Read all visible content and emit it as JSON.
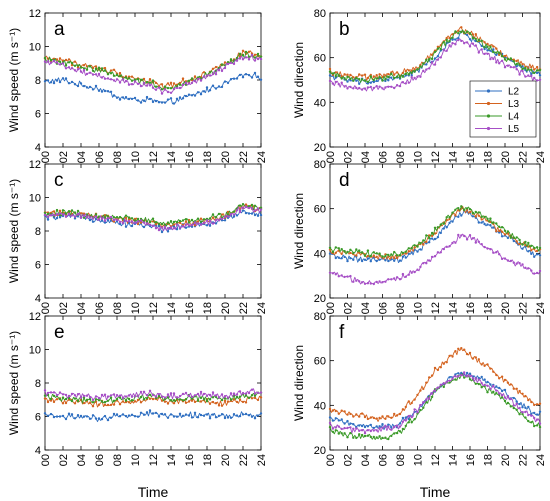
{
  "figure": {
    "x_label": "Time",
    "x_tick_labels": [
      "00",
      "02",
      "04",
      "06",
      "08",
      "10",
      "12",
      "14",
      "16",
      "18",
      "20",
      "22",
      "24"
    ]
  },
  "legend": {
    "entries": [
      {
        "name": "L2",
        "color": "#2f6fc1"
      },
      {
        "name": "L3",
        "color": "#d4631f"
      },
      {
        "name": "L4",
        "color": "#3a9a28"
      },
      {
        "name": "L5",
        "color": "#a64fc6"
      }
    ]
  },
  "chart_data": [
    {
      "panel": "a",
      "type": "line",
      "ylabel": "Wind speed (m s⁻¹)",
      "xlabel": "",
      "ylim": [
        4,
        12
      ],
      "yticks": [
        4,
        6,
        8,
        10,
        12
      ],
      "x": [
        0,
        2,
        4,
        6,
        8,
        10,
        12,
        13,
        14,
        16,
        18,
        20,
        22,
        23.5
      ],
      "series": [
        {
          "name": "L2",
          "values": [
            7.9,
            8.0,
            7.7,
            7.5,
            7.0,
            6.8,
            6.8,
            6.6,
            6.7,
            7.0,
            7.4,
            7.8,
            8.3,
            8.2
          ]
        },
        {
          "name": "L3",
          "values": [
            9.3,
            9.2,
            8.9,
            8.7,
            8.4,
            8.1,
            7.9,
            7.6,
            7.7,
            8.0,
            8.4,
            9.0,
            9.6,
            9.5
          ]
        },
        {
          "name": "L4",
          "values": [
            9.2,
            9.1,
            8.8,
            8.6,
            8.3,
            8.0,
            7.8,
            7.5,
            7.6,
            7.9,
            8.3,
            8.9,
            9.5,
            9.4
          ]
        },
        {
          "name": "L5",
          "values": [
            9.0,
            8.9,
            8.5,
            8.3,
            8.0,
            7.8,
            7.6,
            7.3,
            7.4,
            7.7,
            8.2,
            8.8,
            9.4,
            9.3
          ]
        }
      ]
    },
    {
      "panel": "b",
      "type": "line",
      "ylabel": "Wind direction",
      "xlabel": "",
      "ylim": [
        20,
        80
      ],
      "yticks": [
        20,
        40,
        60,
        80
      ],
      "x": [
        0,
        2,
        4,
        6,
        8,
        10,
        12,
        14,
        15,
        16,
        18,
        20,
        22,
        23.5
      ],
      "series": [
        {
          "name": "L2",
          "values": [
            52,
            50,
            49,
            50,
            51,
            54,
            60,
            68,
            71,
            69,
            64,
            60,
            55,
            53
          ]
        },
        {
          "name": "L3",
          "values": [
            54,
            52,
            51,
            52,
            53,
            56,
            63,
            71,
            73,
            71,
            66,
            61,
            57,
            55
          ]
        },
        {
          "name": "L4",
          "values": [
            53,
            51,
            50,
            51,
            52,
            55,
            62,
            70,
            72,
            70,
            65,
            60,
            56,
            54
          ]
        },
        {
          "name": "L5",
          "values": [
            49,
            47,
            46,
            47,
            48,
            51,
            58,
            66,
            68,
            66,
            61,
            57,
            53,
            50
          ]
        }
      ]
    },
    {
      "panel": "c",
      "type": "line",
      "ylabel": "Wind speed (m s⁻¹)",
      "xlabel": "",
      "ylim": [
        4,
        12
      ],
      "yticks": [
        4,
        6,
        8,
        10,
        12
      ],
      "x": [
        0,
        2,
        4,
        6,
        8,
        10,
        12,
        13,
        14,
        16,
        18,
        20,
        22,
        23.5
      ],
      "series": [
        {
          "name": "L2",
          "values": [
            8.8,
            8.9,
            8.8,
            8.7,
            8.5,
            8.4,
            8.3,
            8.1,
            8.2,
            8.3,
            8.4,
            8.7,
            9.2,
            9.0
          ]
        },
        {
          "name": "L3",
          "values": [
            9.0,
            9.1,
            9.0,
            8.9,
            8.7,
            8.6,
            8.5,
            8.3,
            8.4,
            8.5,
            8.6,
            8.9,
            9.5,
            9.3
          ]
        },
        {
          "name": "L4",
          "values": [
            9.0,
            9.1,
            9.0,
            8.9,
            8.8,
            8.7,
            8.6,
            8.4,
            8.5,
            8.6,
            8.7,
            9.0,
            9.6,
            9.4
          ]
        },
        {
          "name": "L5",
          "values": [
            8.9,
            9.0,
            8.9,
            8.8,
            8.6,
            8.5,
            8.4,
            8.1,
            8.2,
            8.4,
            8.5,
            8.8,
            9.4,
            9.2
          ]
        }
      ]
    },
    {
      "panel": "d",
      "type": "line",
      "ylabel": "Wind direction",
      "xlabel": "",
      "ylim": [
        20,
        80
      ],
      "yticks": [
        20,
        40,
        60,
        80
      ],
      "x": [
        0,
        2,
        4,
        6,
        8,
        10,
        12,
        14,
        15,
        16,
        18,
        20,
        22,
        23.5
      ],
      "series": [
        {
          "name": "L2",
          "values": [
            39,
            38,
            37,
            37,
            37,
            41,
            47,
            55,
            58,
            57,
            53,
            48,
            43,
            39
          ]
        },
        {
          "name": "L3",
          "values": [
            41,
            40,
            39,
            38,
            39,
            43,
            49,
            57,
            60,
            59,
            54,
            49,
            44,
            41
          ]
        },
        {
          "name": "L4",
          "values": [
            42,
            41,
            40,
            39,
            40,
            44,
            50,
            58,
            61,
            60,
            55,
            50,
            45,
            42
          ]
        },
        {
          "name": "L5",
          "values": [
            31,
            29,
            27,
            27,
            29,
            33,
            39,
            45,
            48,
            47,
            43,
            38,
            34,
            31
          ]
        }
      ]
    },
    {
      "panel": "e",
      "type": "line",
      "ylabel": "Wind speed (m s⁻¹)",
      "xlabel": "",
      "ylim": [
        4,
        12
      ],
      "yticks": [
        4,
        6,
        8,
        10,
        12
      ],
      "x": [
        0,
        2,
        4,
        6,
        8,
        10,
        12,
        14,
        16,
        18,
        20,
        22,
        23.5
      ],
      "series": [
        {
          "name": "L2",
          "values": [
            6.1,
            6.0,
            6.0,
            5.8,
            6.0,
            6.1,
            6.2,
            6.0,
            6.1,
            6.1,
            6.0,
            6.1,
            6.1
          ]
        },
        {
          "name": "L3",
          "values": [
            7.0,
            6.9,
            6.9,
            6.7,
            6.8,
            6.9,
            7.0,
            6.9,
            6.9,
            6.9,
            6.8,
            7.0,
            7.1
          ]
        },
        {
          "name": "L4",
          "values": [
            7.2,
            7.1,
            7.0,
            6.9,
            7.0,
            7.1,
            7.2,
            7.0,
            7.1,
            7.1,
            7.0,
            7.2,
            7.3
          ]
        },
        {
          "name": "L5",
          "values": [
            7.4,
            7.3,
            7.2,
            7.1,
            7.2,
            7.3,
            7.4,
            7.2,
            7.3,
            7.3,
            7.2,
            7.4,
            7.5
          ]
        }
      ]
    },
    {
      "panel": "f",
      "type": "line",
      "ylabel": "Wind direction",
      "xlabel": "Time",
      "ylim": [
        20,
        80
      ],
      "yticks": [
        20,
        40,
        60,
        80
      ],
      "x": [
        0,
        2,
        4,
        6,
        8,
        10,
        12,
        14,
        15,
        16,
        18,
        20,
        22,
        23.5
      ],
      "series": [
        {
          "name": "L2",
          "values": [
            34,
            32,
            31,
            30,
            32,
            38,
            47,
            53,
            55,
            54,
            50,
            46,
            40,
            36
          ]
        },
        {
          "name": "L3",
          "values": [
            38,
            36,
            35,
            34,
            36,
            45,
            56,
            63,
            65,
            63,
            57,
            51,
            45,
            40
          ]
        },
        {
          "name": "L4",
          "values": [
            29,
            27,
            26,
            25,
            28,
            36,
            46,
            51,
            53,
            52,
            47,
            42,
            36,
            31
          ]
        },
        {
          "name": "L5",
          "values": [
            31,
            29,
            29,
            29,
            31,
            38,
            47,
            52,
            54,
            53,
            49,
            44,
            38,
            33
          ]
        }
      ]
    }
  ]
}
